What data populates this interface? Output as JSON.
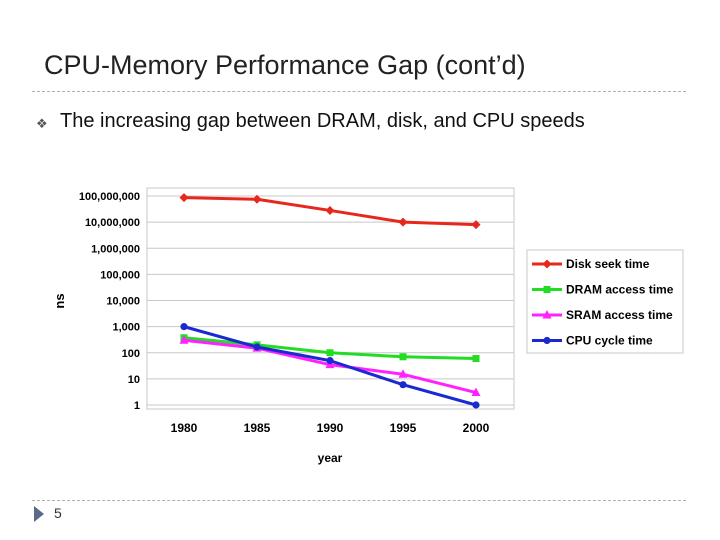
{
  "slide": {
    "title": "CPU-Memory Performance Gap (cont’d)",
    "bullet": "The increasing gap between DRAM, disk, and CPU speeds",
    "bullet_icon": "square-bullet-icon",
    "page_number": "5"
  },
  "chart_data": {
    "type": "line",
    "title": "",
    "xlabel": "year",
    "ylabel": "ns",
    "y_scale": "log",
    "grid": true,
    "legend_position": "right",
    "x": [
      "1980",
      "1985",
      "1990",
      "1995",
      "2000"
    ],
    "y_ticks": [
      1,
      10,
      100,
      1000,
      10000,
      100000,
      1000000,
      10000000,
      100000000
    ],
    "y_tick_labels": [
      "1",
      "10",
      "100",
      "1,000",
      "10,000",
      "100,000",
      "1,000,000",
      "10,000,000",
      "100,000,000"
    ],
    "series": [
      {
        "name": "Disk seek time",
        "color": "#e8271c",
        "marker": "diamond",
        "values": [
          87000000,
          75000000,
          28000000,
          10000000,
          8000000
        ]
      },
      {
        "name": "DRAM access time",
        "color": "#22dd22",
        "marker": "square",
        "values": [
          375,
          200,
          100,
          70,
          60
        ]
      },
      {
        "name": "SRAM access time",
        "color": "#ff22ff",
        "marker": "triangle",
        "values": [
          300,
          150,
          35,
          15,
          3
        ]
      },
      {
        "name": "CPU cycle time",
        "color": "#1a2ad0",
        "marker": "circle",
        "values": [
          1000,
          166,
          50,
          6,
          1
        ]
      }
    ]
  }
}
